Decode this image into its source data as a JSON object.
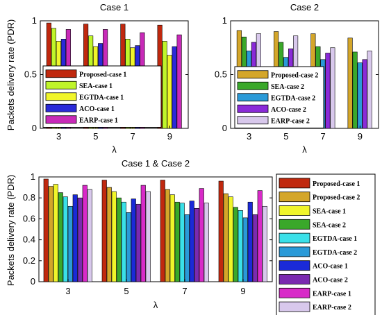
{
  "ylabel_top": "Packets delivery rate (PDR)",
  "ylabel_bottom": "Packets delivery rate (PDR)",
  "colors": {
    "Proposed-case 1": "#c0280e",
    "Proposed-case 2": "#d4a62a",
    "SEA-case 1": "#bff52a",
    "SEA-case 2": "#3aa82a",
    "EGTDA-case 1": "#f0f52a",
    "EGTDA-case 2": "#2a9ad8",
    "ACO-case 1": "#2a2ad8",
    "ACO-case 2": "#8a2ad8",
    "EARP-case 1": "#c82ab8",
    "EARP-case 2": "#d8c8ec",
    "alt_EGTDA-case 2": "#2a9ad8",
    "c1_EGTDA-case 1": "#f0f52a",
    "bottom_EGTDA-case 1": "#3ae0e8",
    "bottom_SEA-case 1": "#f0f52a",
    "bottom_ACO-case 1": "#1a2ad8",
    "bottom_ACO-case 2": "#7a2ab0",
    "bottom_EARP-case 1": "#d82ac8"
  },
  "chart_data": [
    {
      "type": "bar",
      "title": "Case 1",
      "xlabel": "λ",
      "ylabel": "Packets delivery rate (PDR)",
      "categories": [
        "3",
        "5",
        "7",
        "9"
      ],
      "ylim": [
        0,
        1
      ],
      "yticks": [
        "0",
        "0.5",
        "1"
      ],
      "legend_position": "lower-left",
      "series": [
        {
          "name": "Proposed-case 1",
          "values": [
            0.98,
            0.97,
            0.97,
            0.96
          ]
        },
        {
          "name": "SEA-case 1",
          "values": [
            0.93,
            0.86,
            0.83,
            0.81
          ]
        },
        {
          "name": "EGTDA-case 1",
          "values": [
            0.81,
            0.76,
            0.75,
            0.68
          ]
        },
        {
          "name": "ACO-case 1",
          "values": [
            0.83,
            0.79,
            0.77,
            0.76
          ]
        },
        {
          "name": "EARP-case 1",
          "values": [
            0.92,
            0.92,
            0.89,
            0.87
          ]
        }
      ]
    },
    {
      "type": "bar",
      "title": "Case 2",
      "xlabel": "λ",
      "ylabel": "",
      "categories": [
        "3",
        "5",
        "7",
        "9"
      ],
      "ylim": [
        0,
        1
      ],
      "yticks": [
        "0",
        "0.5",
        "1"
      ],
      "legend_position": "lower-left",
      "series": [
        {
          "name": "Proposed-case 2",
          "values": [
            0.91,
            0.9,
            0.88,
            0.84
          ]
        },
        {
          "name": "SEA-case 2",
          "values": [
            0.85,
            0.8,
            0.76,
            0.71
          ]
        },
        {
          "name": "EGTDA-case 2",
          "values": [
            0.72,
            0.66,
            0.64,
            0.61
          ]
        },
        {
          "name": "ACO-case 2",
          "values": [
            0.8,
            0.74,
            0.7,
            0.64
          ]
        },
        {
          "name": "EARP-case 2",
          "values": [
            0.88,
            0.86,
            0.75,
            0.72
          ]
        }
      ]
    },
    {
      "type": "bar",
      "title": "Case 1 & Case 2",
      "xlabel": "λ",
      "ylabel": "Packets delivery rate (PDR)",
      "categories": [
        "3",
        "5",
        "7",
        "9"
      ],
      "ylim": [
        0,
        1
      ],
      "yticks": [
        "0",
        "0.2",
        "0.4",
        "0.6",
        "0.8",
        "1"
      ],
      "legend_position": "outside-right",
      "series": [
        {
          "name": "Proposed-case 1",
          "values": [
            0.98,
            0.97,
            0.97,
            0.96
          ]
        },
        {
          "name": "Proposed-case 2",
          "values": [
            0.91,
            0.9,
            0.88,
            0.84
          ]
        },
        {
          "name": "SEA-case 1",
          "values": [
            0.93,
            0.86,
            0.83,
            0.81
          ]
        },
        {
          "name": "SEA-case 2",
          "values": [
            0.85,
            0.8,
            0.76,
            0.71
          ]
        },
        {
          "name": "EGTDA-case 1",
          "values": [
            0.81,
            0.76,
            0.75,
            0.68
          ]
        },
        {
          "name": "EGTDA-case 2",
          "values": [
            0.72,
            0.66,
            0.64,
            0.61
          ]
        },
        {
          "name": "ACO-case 1",
          "values": [
            0.83,
            0.79,
            0.77,
            0.76
          ]
        },
        {
          "name": "ACO-case 2",
          "values": [
            0.8,
            0.74,
            0.7,
            0.64
          ]
        },
        {
          "name": "EARP-case 1",
          "values": [
            0.92,
            0.92,
            0.89,
            0.87
          ]
        },
        {
          "name": "EARP-case 2",
          "values": [
            0.88,
            0.86,
            0.75,
            0.72
          ]
        }
      ]
    }
  ]
}
